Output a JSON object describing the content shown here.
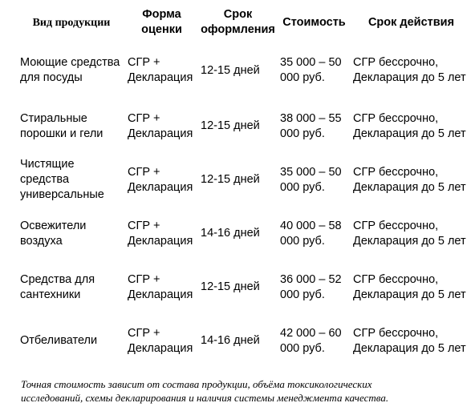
{
  "table": {
    "headers": [
      "Вид продукции",
      "Форма оценки",
      "Срок оформления",
      "Стоимость",
      "Срок действия"
    ],
    "rows": [
      [
        "Моющие средства для посуды",
        "СГР + Декларация",
        "12-15 дней",
        "35 000 – 50 000 руб.",
        "СГР бессрочно, Декларация до 5 лет"
      ],
      [
        "Стиральные порошки и гели",
        "СГР + Декларация",
        "12-15 дней",
        "38 000 – 55 000 руб.",
        "СГР бессрочно, Декларация до 5 лет"
      ],
      [
        "Чистящие средства универсальные",
        "СГР + Декларация",
        "12-15 дней",
        "35 000 – 50 000 руб.",
        "СГР бессрочно, Декларация до 5 лет"
      ],
      [
        "Освежители воздуха",
        "СГР + Декларация",
        "14-16 дней",
        "40 000 – 58 000 руб.",
        "СГР бессрочно, Декларация до 5 лет"
      ],
      [
        "Средства для сантехники",
        "СГР + Декларация",
        "12-15 дней",
        "36 000 – 52 000 руб.",
        "СГР бессрочно, Декларация до 5 лет"
      ],
      [
        "Отбеливатели",
        "СГР + Декларация",
        "14-16 дней",
        "42 000 – 60 000 руб.",
        "СГР бессрочно, Декларация до 5 лет"
      ]
    ]
  },
  "footnote": "Точная стоимость зависит от состава продукции, объёма токсикологических исследований, схемы декларирования и наличия системы менеджмента качества."
}
